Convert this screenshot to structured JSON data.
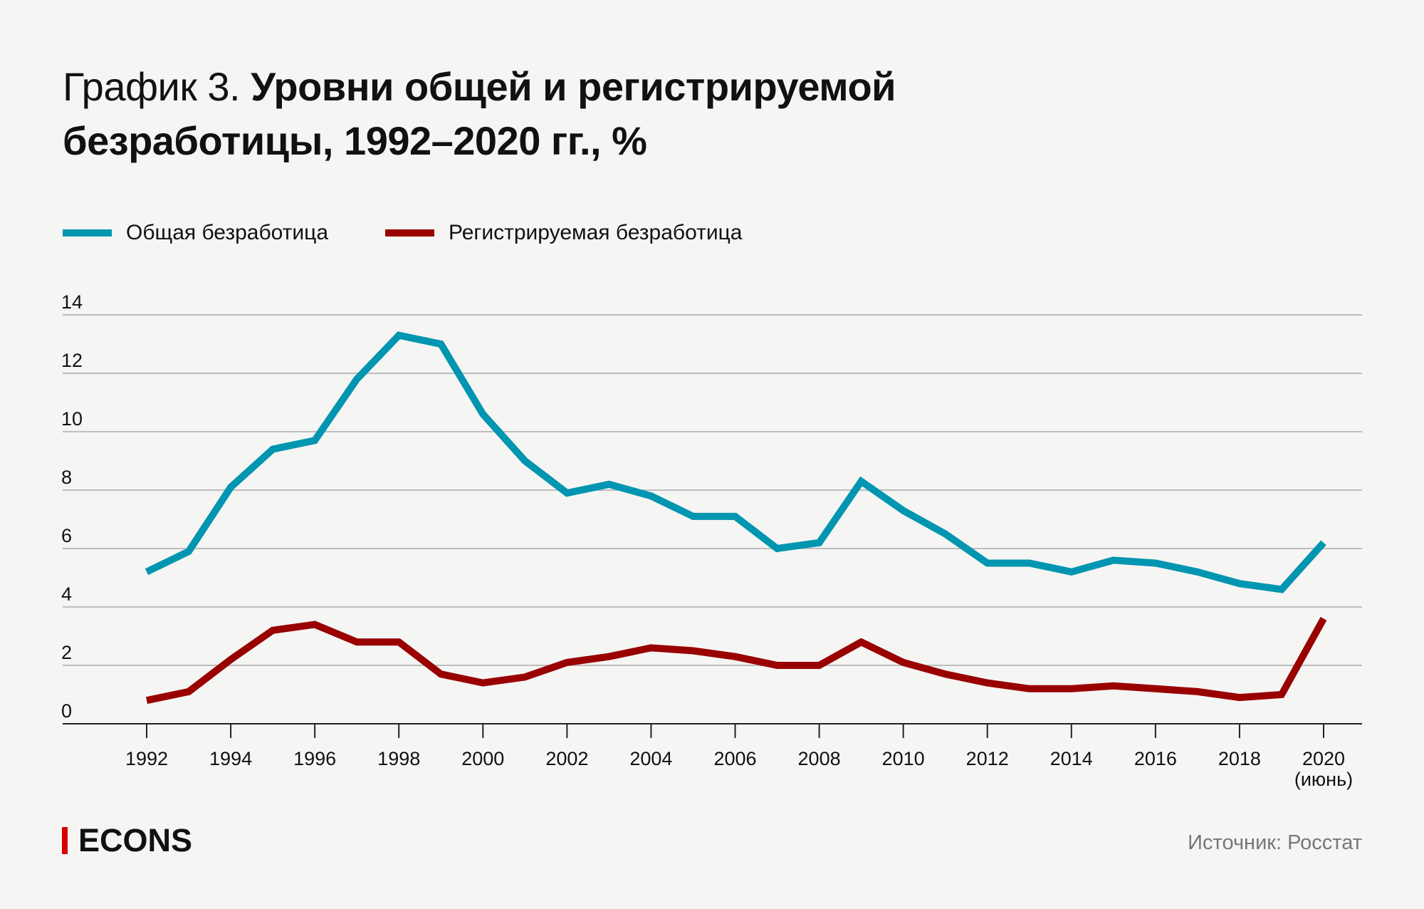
{
  "title": {
    "prefix": "График 3.",
    "main": "Уровни общей и регистрируемой безработицы, 1992–2020 гг., %"
  },
  "legend": [
    {
      "label": "Общая безработица",
      "color": "#0095b0"
    },
    {
      "label": "Регистрируемая безработица",
      "color": "#990000"
    }
  ],
  "brand": {
    "name": "ECONS",
    "accent_color": "#d40000"
  },
  "source": "Источник: Росстат",
  "chart_data": {
    "type": "line",
    "title": "Уровни общей и регистрируемой безработицы, 1992–2020 гг., %",
    "xlabel": "",
    "ylabel": "%",
    "x": [
      1992,
      1993,
      1994,
      1995,
      1996,
      1997,
      1998,
      1999,
      2000,
      2001,
      2002,
      2003,
      2004,
      2005,
      2006,
      2007,
      2008,
      2009,
      2010,
      2011,
      2012,
      2013,
      2014,
      2015,
      2016,
      2017,
      2018,
      2019,
      2020
    ],
    "x_ticks": [
      1992,
      1994,
      1996,
      1998,
      2000,
      2002,
      2004,
      2006,
      2008,
      2010,
      2012,
      2014,
      2016,
      2018,
      2020
    ],
    "x_tick_labels": [
      "1992",
      "1994",
      "1996",
      "1998",
      "2000",
      "2002",
      "2004",
      "2006",
      "2008",
      "2010",
      "2012",
      "2014",
      "2016",
      "2018",
      "2020"
    ],
    "x_tick_sublabels": {
      "2020": "(июнь)"
    },
    "ylim": [
      0,
      14
    ],
    "y_ticks": [
      0,
      2,
      4,
      6,
      8,
      10,
      12,
      14
    ],
    "y_tick_labels": [
      "0",
      "2",
      "4",
      "6",
      "8",
      "10",
      "12",
      "14"
    ],
    "grid": true,
    "legend_position": "top-left",
    "series": [
      {
        "name": "Общая безработица",
        "color": "#0095b0",
        "values": [
          5.2,
          5.9,
          8.1,
          9.4,
          9.7,
          11.8,
          13.3,
          13.0,
          10.6,
          9.0,
          7.9,
          8.2,
          7.8,
          7.1,
          7.1,
          6.0,
          6.2,
          8.3,
          7.3,
          6.5,
          5.5,
          5.5,
          5.2,
          5.6,
          5.5,
          5.2,
          4.8,
          4.6,
          6.2
        ]
      },
      {
        "name": "Регистрируемая безработица",
        "color": "#990000",
        "values": [
          0.8,
          1.1,
          2.2,
          3.2,
          3.4,
          2.8,
          2.8,
          1.7,
          1.4,
          1.6,
          2.1,
          2.3,
          2.6,
          2.5,
          2.3,
          2.0,
          2.0,
          2.8,
          2.1,
          1.7,
          1.4,
          1.2,
          1.2,
          1.3,
          1.2,
          1.1,
          0.9,
          1.0,
          3.6
        ]
      }
    ]
  }
}
